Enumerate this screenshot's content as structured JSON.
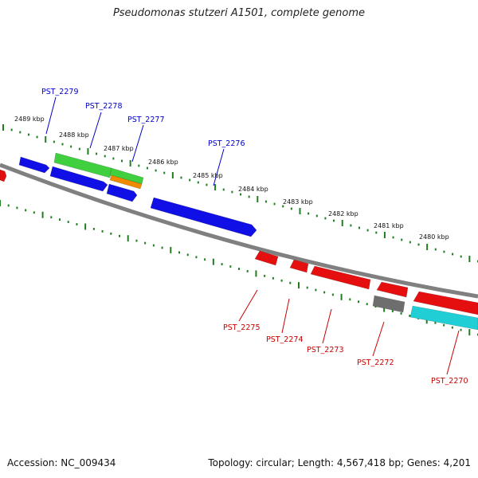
{
  "header": {
    "title": "Pseudomonas stutzeri A1501, complete genome"
  },
  "footer": {
    "accession": "Accession: NC_009434",
    "stats": "Topology: circular; Length: 4,567,418 bp; Genes: 4,201"
  },
  "colors": {
    "forward": "#1010e6",
    "reverse": "#e60f0f",
    "green": "#3fcf3f",
    "orange": "#f08a00",
    "gray": "#6e6e6e",
    "cyan": "#20cfd6",
    "backbone": "#808080",
    "ticks": "#1f7f1f",
    "label_forward": "#0000c8",
    "label_reverse": "#c80000"
  },
  "scale_labels": [
    "2489 kbp",
    "2488 kbp",
    "2487 kbp",
    "2486 kbp",
    "2485 kbp",
    "2484 kbp",
    "2483 kbp",
    "2482 kbp",
    "2481 kbp",
    "2480 kbp"
  ],
  "gene_labels": {
    "forward": [
      "PST_2279",
      "PST_2278",
      "PST_2277",
      "PST_2276"
    ],
    "reverse": [
      "PST_2275",
      "PST_2274",
      "PST_2273",
      "PST_2272",
      "PST_2270"
    ]
  }
}
